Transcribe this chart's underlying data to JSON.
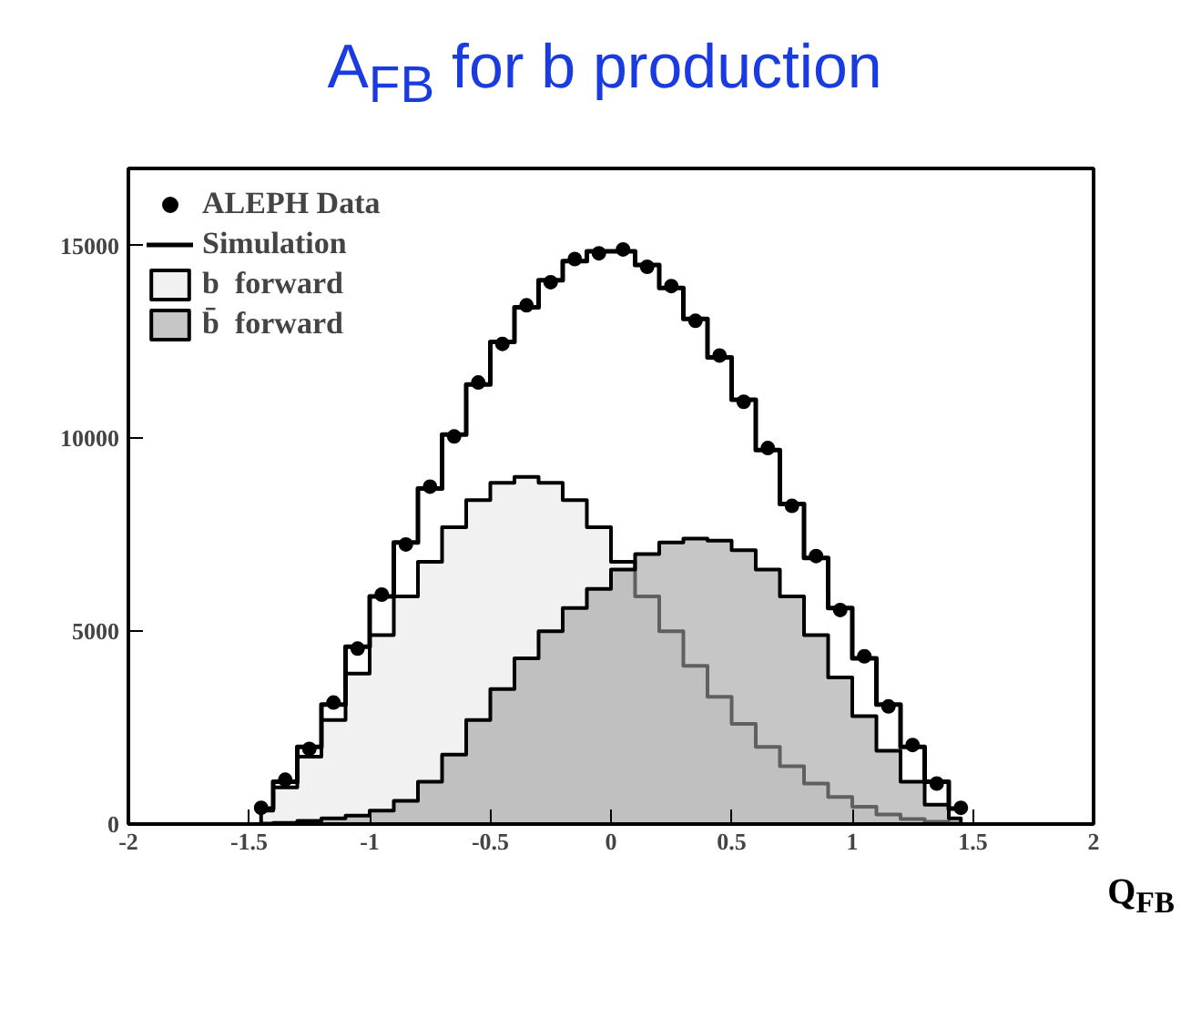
{
  "chart_data": {
    "type": "step",
    "title": "A$_{FB}$ for b production",
    "xlabel": "Q$_{FB}$",
    "x": [
      -1.45,
      -1.35,
      -1.25,
      -1.15,
      -1.05,
      -0.95,
      -0.85,
      -0.75,
      -0.65,
      -0.55,
      -0.45,
      -0.35,
      -0.25,
      -0.15,
      -0.05,
      0.05,
      0.15,
      0.25,
      0.35,
      0.45,
      0.55,
      0.65,
      0.75,
      0.85,
      0.95,
      1.05,
      1.15,
      1.25,
      1.35,
      1.45
    ],
    "series": [
      {
        "name": "b  forward",
        "type": "area",
        "color": "#e8e8e8",
        "values": [
          350,
          950,
          1750,
          2700,
          3900,
          4900,
          5900,
          6800,
          7700,
          8400,
          8850,
          9000,
          8850,
          8400,
          7700,
          6800,
          5900,
          5000,
          4100,
          3300,
          2600,
          2000,
          1500,
          1050,
          700,
          450,
          250,
          130,
          60,
          20
        ]
      },
      {
        "name": "b̄  forward",
        "type": "area",
        "color": "#a0a0a0",
        "values": [
          10,
          30,
          80,
          150,
          220,
          350,
          600,
          1100,
          1800,
          2700,
          3500,
          4300,
          5000,
          5600,
          6100,
          6600,
          7000,
          7300,
          7400,
          7350,
          7100,
          6600,
          5900,
          4900,
          3800,
          2800,
          1900,
          1100,
          500,
          150
        ]
      },
      {
        "name": "Simulation",
        "color": "#000000",
        "values": [
          400,
          1100,
          2000,
          3100,
          4600,
          5900,
          7300,
          8700,
          10100,
          11400,
          12500,
          13400,
          14100,
          14600,
          14850,
          14850,
          14500,
          13900,
          13100,
          12100,
          11000,
          9700,
          8300,
          6900,
          5600,
          4300,
          3100,
          2000,
          1100,
          400
        ]
      },
      {
        "name": "ALEPH Data",
        "type": "scatter",
        "color": "#000000",
        "values": [
          420,
          1150,
          1950,
          3150,
          4550,
          5950,
          7250,
          8750,
          10050,
          11450,
          12450,
          13450,
          14050,
          14650,
          14800,
          14900,
          14450,
          13950,
          13050,
          12150,
          10950,
          9750,
          8250,
          6950,
          5550,
          4350,
          3050,
          2050,
          1050,
          420
        ]
      }
    ],
    "xlim": [
      -2,
      2
    ],
    "ylim": [
      0,
      17000
    ],
    "xticks": [
      -2,
      -1.5,
      -1,
      -0.5,
      0,
      0.5,
      1,
      1.5,
      2
    ],
    "yticks": [
      0,
      5000,
      10000,
      15000
    ],
    "legend": "top left",
    "grid": false
  }
}
